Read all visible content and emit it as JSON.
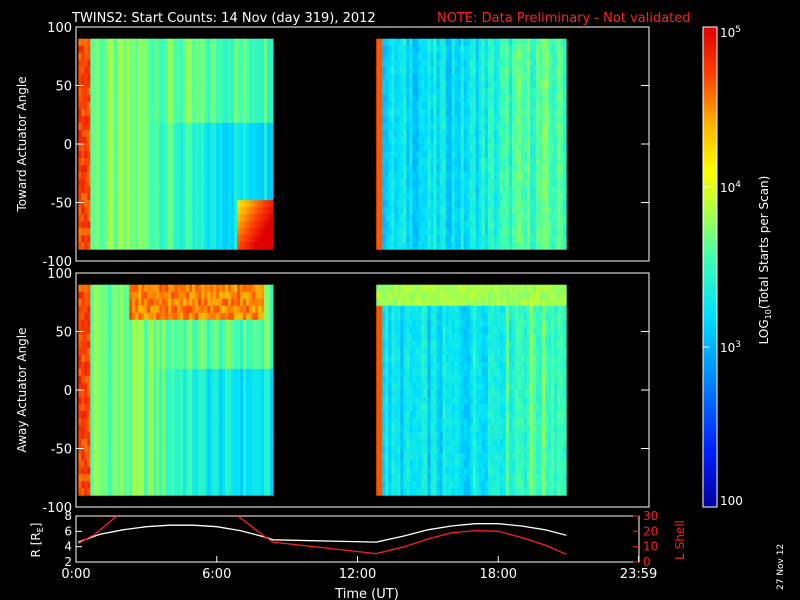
{
  "header": {
    "title": "TWINS2: Start Counts: 14 Nov (day 319), 2012",
    "note": "NOTE: Data Preliminary - Not validated",
    "note_color": "#ff2020",
    "date_stamp": "27 Nov 12"
  },
  "chart_data": [
    {
      "type": "heatmap",
      "panel": "toward",
      "ylabel": "Toward Actuator Angle",
      "ylim": [
        -100,
        100
      ],
      "yticks": [
        "100",
        "50",
        "0",
        "-50",
        "-100"
      ],
      "xlim_hours": [
        0,
        24
      ],
      "data_segments_hours": [
        [
          0.1,
          8.4
        ],
        [
          12.8,
          20.9
        ]
      ],
      "angle_range": [
        -90,
        90
      ]
    },
    {
      "type": "heatmap",
      "panel": "away",
      "ylabel": "Away Actuator Angle",
      "ylim": [
        -100,
        100
      ],
      "yticks": [
        "100",
        "50",
        "0",
        "-50",
        "-100"
      ],
      "xlim_hours": [
        0,
        24
      ],
      "data_segments_hours": [
        [
          0.1,
          8.4
        ],
        [
          12.8,
          20.9
        ]
      ],
      "angle_range": [
        -90,
        90
      ]
    },
    {
      "type": "line",
      "panel": "orbit",
      "ylabel_left": "R [RE]",
      "ylabel_right": "L Shell",
      "yticks_left": [
        "8",
        "6",
        "4",
        "2"
      ],
      "yticks_right": [
        "30",
        "20",
        "10",
        "0"
      ],
      "ylim_left": [
        2,
        8
      ],
      "ylim_right": [
        0,
        30
      ],
      "xlabel": "Time (UT)",
      "xticks": [
        "0:00",
        "6:00",
        "12:00",
        "18:00",
        "23:59"
      ],
      "series": [
        {
          "axis": "left",
          "color": "#ffffff",
          "x": [
            0.1,
            1,
            2,
            3,
            4,
            5,
            6,
            7,
            8,
            8.4,
            12.8,
            14,
            15,
            16,
            17,
            18,
            19,
            20,
            20.9
          ],
          "y": [
            4.6,
            5.6,
            6.2,
            6.6,
            6.8,
            6.8,
            6.6,
            6.1,
            5.3,
            4.9,
            4.6,
            5.4,
            6.2,
            6.7,
            7.0,
            7.0,
            6.7,
            6.2,
            5.5
          ]
        },
        {
          "axis": "right",
          "color": "#ff2020",
          "x": [
            0.1,
            0.8,
            1.5,
            1.75
          ],
          "y": [
            12,
            18,
            27,
            30
          ]
        },
        {
          "axis": "right",
          "color": "#ff2020",
          "x": [
            6.9,
            7.5,
            8.0,
            8.4,
            12.8,
            14,
            15,
            16,
            17,
            18,
            19,
            20,
            20.9
          ],
          "y": [
            30,
            23,
            17,
            13,
            5.5,
            10,
            15,
            19,
            20.5,
            20,
            16,
            11,
            5
          ]
        }
      ]
    }
  ],
  "colorbar": {
    "label": "LOG",
    "label_sub": "10",
    "label_rest": "(Total Starts per Scan)",
    "ticks": [
      {
        "base": "10",
        "exp": "5",
        "value": 100000
      },
      {
        "base": "10",
        "exp": "4",
        "value": 10000
      },
      {
        "base": "10",
        "exp": "3",
        "value": 1000
      },
      {
        "base": "100",
        "exp": "",
        "value": 100
      }
    ],
    "range": [
      100,
      100000
    ]
  },
  "r_label_parts": {
    "main": "R [R",
    "sub": "E",
    "close": "]"
  }
}
